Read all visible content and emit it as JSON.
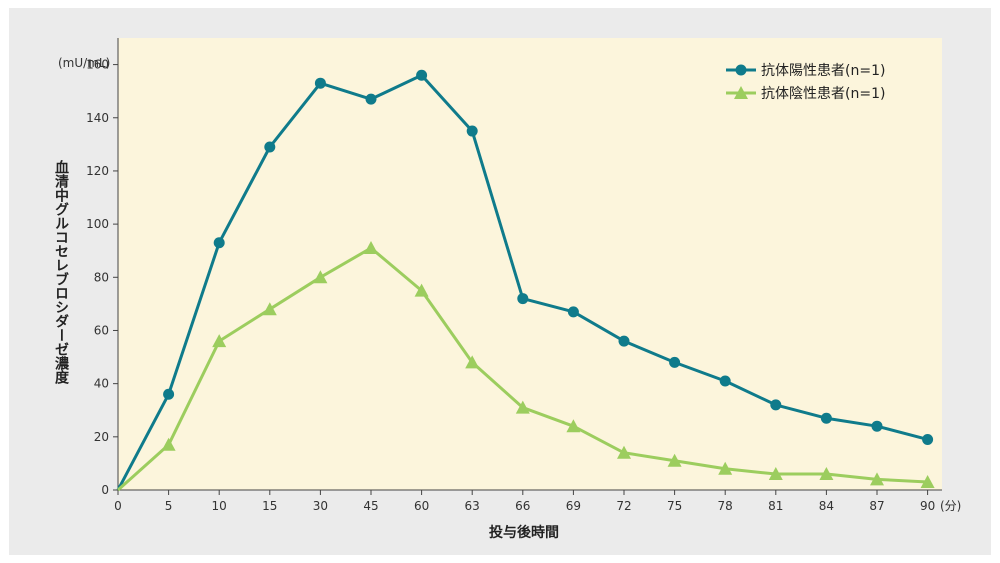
{
  "chart_data": {
    "type": "line",
    "categories": [
      "0",
      "5",
      "10",
      "15",
      "30",
      "45",
      "60",
      "63",
      "66",
      "69",
      "72",
      "75",
      "78",
      "81",
      "84",
      "87",
      "90"
    ],
    "series": [
      {
        "name": "抗体陽性患者(n=1)",
        "marker": "circle",
        "color": "#0f7b8b",
        "values": [
          0,
          36,
          93,
          129,
          153,
          147,
          156,
          135,
          72,
          67,
          56,
          48,
          41,
          32,
          27,
          24,
          19
        ]
      },
      {
        "name": "抗体陰性患者(n=1)",
        "marker": "triangle",
        "color": "#9ccd5e",
        "values": [
          0,
          17,
          56,
          68,
          80,
          91,
          75,
          48,
          31,
          24,
          14,
          11,
          8,
          6,
          6,
          4,
          3
        ]
      }
    ],
    "y_unit": "(mU/mL)",
    "x_unit": "(分)",
    "xlabel": "投与後時間",
    "ylabel": "血清中グルコセレブロシダーゼ濃度",
    "ylim": [
      0,
      170
    ],
    "yticks": [
      0,
      20,
      40,
      60,
      80,
      100,
      120,
      140,
      160
    ],
    "grid": false,
    "plot_background": "#fcf5dc",
    "legend_position": "top-right"
  }
}
